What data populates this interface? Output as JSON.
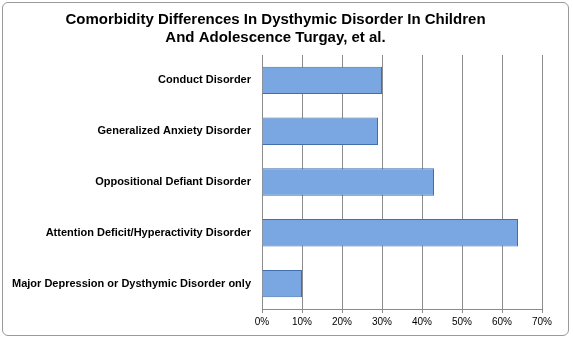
{
  "chart_data": {
    "type": "bar",
    "orientation": "horizontal",
    "title": [
      "Comorbidity Differences In Dysthymic Disorder In Children",
      "And Adolescence Turgay, et al."
    ],
    "categories": [
      "Conduct Disorder",
      "Generalized Anxiety Disorder",
      "Oppositional Defiant Disorder",
      "Attention Deficit/Hyperactivity Disorder",
      "Major Depression or Dysthymic Disorder only"
    ],
    "values": [
      30,
      29,
      43,
      64,
      10
    ],
    "color": "#7aa7e2",
    "xlim": [
      0,
      70
    ],
    "xticks": [
      {
        "value": 0,
        "label": "0%"
      },
      {
        "value": 10,
        "label": "10%"
      },
      {
        "value": 20,
        "label": "20%"
      },
      {
        "value": 30,
        "label": "30%"
      },
      {
        "value": 40,
        "label": "40%"
      },
      {
        "value": 50,
        "label": "50%"
      },
      {
        "value": 60,
        "label": "60%"
      },
      {
        "value": 70,
        "label": "70%"
      }
    ],
    "grid": true
  }
}
